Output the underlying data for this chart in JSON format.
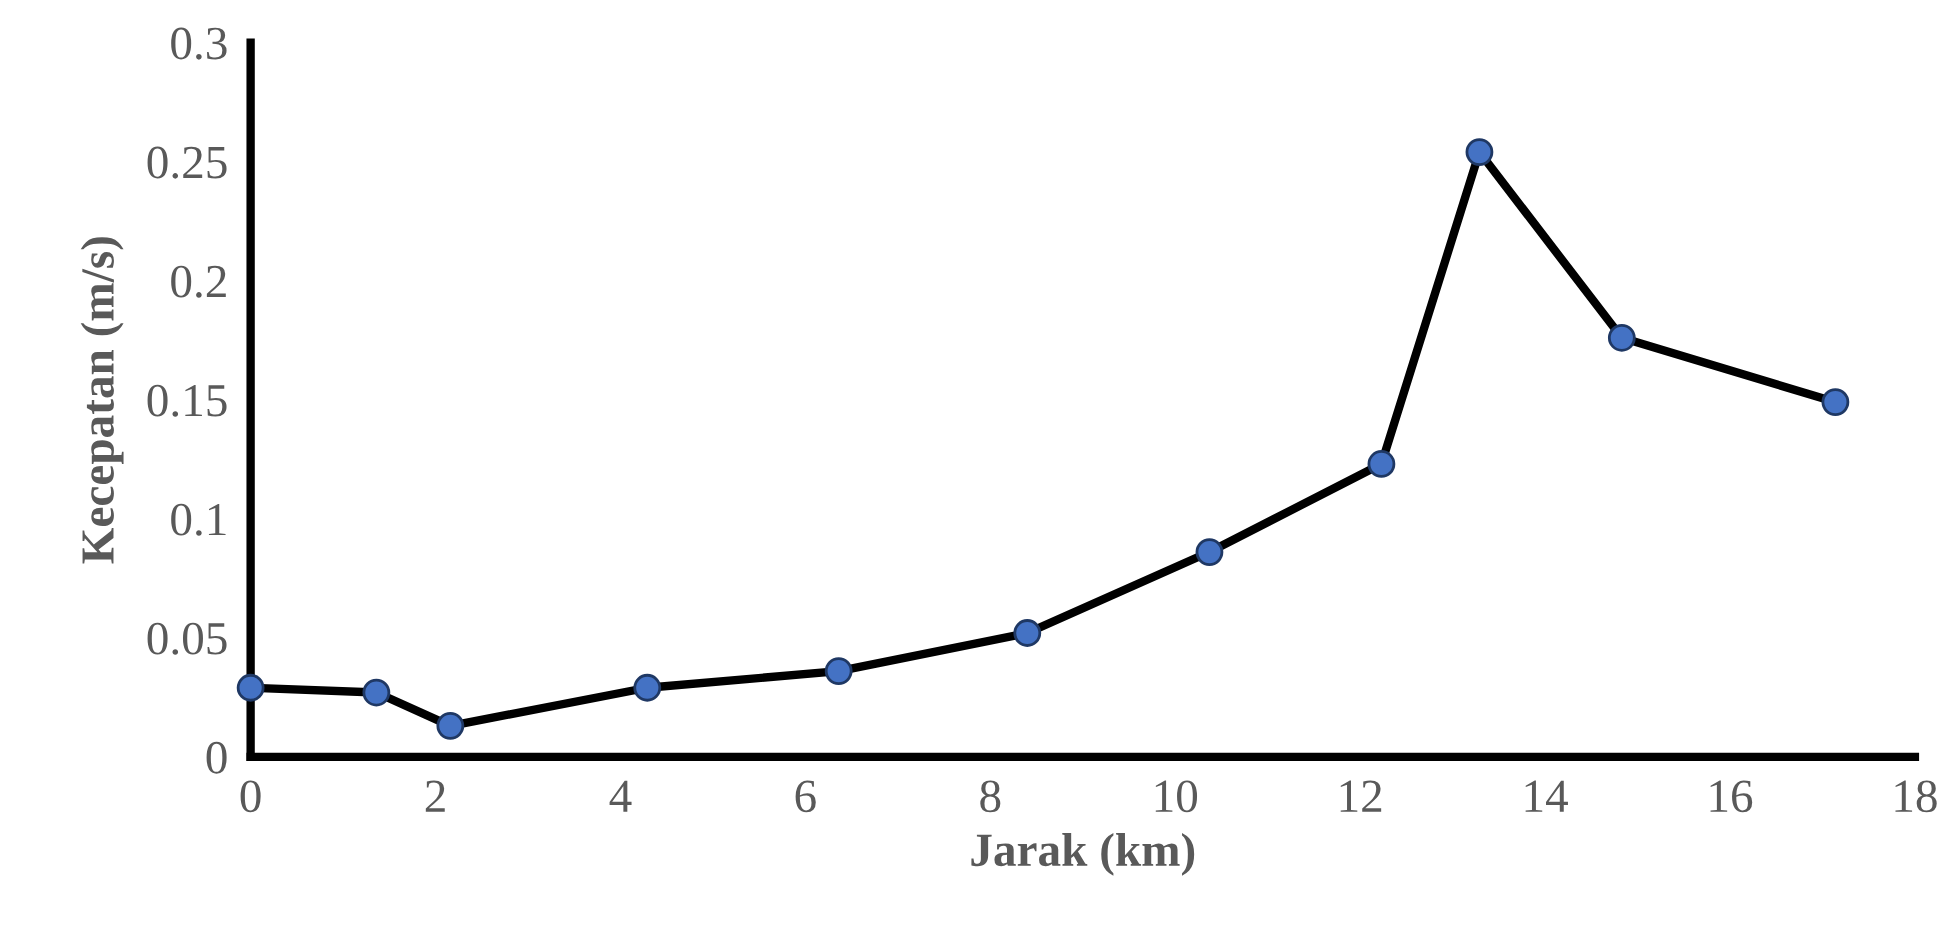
{
  "chart_data": {
    "type": "line",
    "xlabel": "Jarak (km)",
    "ylabel": "Kecepatan (m/s)",
    "x": [
      0,
      1.36,
      2.16,
      4.29,
      6.36,
      8.4,
      10.37,
      12.23,
      13.29,
      14.83,
      17.14
    ],
    "series": [
      {
        "color": "#4472c4",
        "values": [
          0.029,
          0.027,
          0.013,
          0.029,
          0.036,
          0.052,
          0.086,
          0.123,
          0.254,
          0.176,
          0.149
        ]
      }
    ],
    "xlim": [
      0,
      18
    ],
    "xticks": [
      0,
      2,
      4,
      6,
      8,
      10,
      12,
      14,
      16,
      18
    ],
    "ylim": [
      0,
      0.3
    ],
    "yticks": [
      0,
      0.05,
      0.1,
      0.15,
      0.2,
      0.25,
      0.3
    ],
    "grid": false,
    "legend": false,
    "marker": "circle",
    "line_style": "solid"
  }
}
